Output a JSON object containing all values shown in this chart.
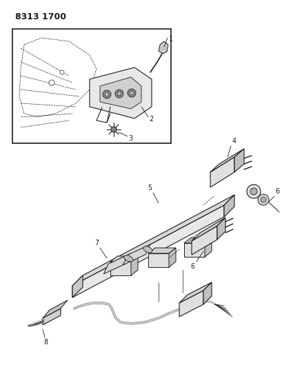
{
  "title": "8313 1700",
  "background_color": "#ffffff",
  "line_color": "#1a1a1a",
  "fig_width": 4.1,
  "fig_height": 5.33,
  "dpi": 100
}
